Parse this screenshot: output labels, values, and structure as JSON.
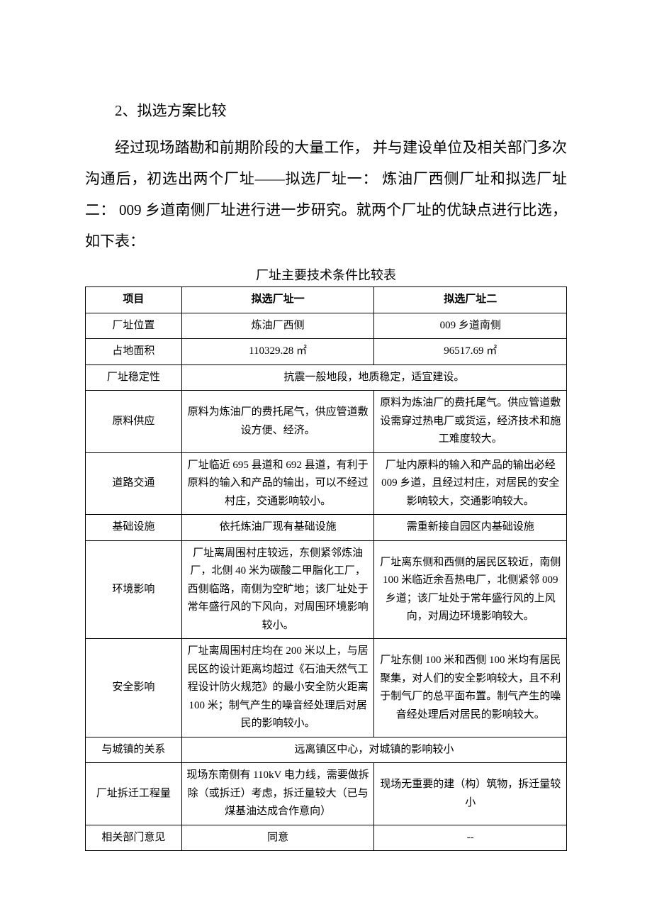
{
  "heading": "2、拟选方案比较",
  "paragraph": "经过现场踏勘和前期阶段的大量工作，  并与建设单位及相关部门多次沟通后，初选出两个厂址——拟选厂址一：  炼油厂西侧厂址和拟选厂址二： 009 乡道南侧厂址进行进一步研究。就两个厂址的优缺点进行比选，如下表：",
  "table": {
    "title": "厂址主要技术条件比较表",
    "header": {
      "col0": "项目",
      "col1": "拟选厂址一",
      "col2": "拟选厂址二"
    },
    "rows": {
      "location": {
        "label": "厂址位置",
        "opt1": "炼油厂西侧",
        "opt2": "009 乡道南侧"
      },
      "area": {
        "label": "占地面积",
        "opt1": "110329.28 ㎡",
        "opt2": "96517.69 ㎡"
      },
      "stability": {
        "label": "厂址稳定性",
        "merged": "抗震一般地段，地质稳定，适宜建设。"
      },
      "material": {
        "label": "原料供应",
        "opt1": "原料为炼油厂的费托尾气，供应管道敷设方便、经济。",
        "opt2": "原料为炼油厂的费托尾气。供应管道敷设需穿过热电厂或货运，经济技术和施工难度较大。"
      },
      "traffic": {
        "label": "道路交通",
        "opt1": "厂址临近 695 县道和 692 县道，有利于原料的输入和产品的输出，可以不经过村庄，交通影响较小。",
        "opt2": "厂址内原料的输入和产品的输出必经 009 乡道，且经过村庄，对居民的安全影响较大，交通影响较大。"
      },
      "infra": {
        "label": "基础设施",
        "opt1": "依托炼油厂现有基础设施",
        "opt2": "需重新接自园区内基础设施"
      },
      "env": {
        "label": "环境影响",
        "opt1": "厂址离周围村庄较远，东侧紧邻炼油厂，北侧 40 米为碳酸二甲脂化工厂，西侧临路，南侧为空旷地；该厂址处于常年盛行风的下风向，对周围环境影响较小。",
        "opt2": "厂址离东侧和西侧的居民区较近，南侧 100 米临近余吾热电厂，北侧紧邻 009 乡道；该厂址处于常年盛行风的上风向，对周边环境影响较大。"
      },
      "safety": {
        "label": "安全影响",
        "opt1": "厂址离周围村庄均在 200 米以上，与居民区的设计距离均超过《石油天然气工程设计防火规范》的最小安全防火距离 100 米；制气产生的噪音经处理后对居民的影响较小。",
        "opt2": "厂址东侧 100 米和西侧 100 米均有居民聚集，对人们的安全影响较大，且不利于制气厂的总平面布置。制气产生的噪音经处理后对居民的影响较大。"
      },
      "town": {
        "label": "与城镇的关系",
        "merged": "远离镇区中心，对城镇的影响较小"
      },
      "demolition": {
        "label": "厂址拆迁工程量",
        "opt1": "现场东南侧有 110kV 电力线，需要做拆除（或拆迁）考虑，拆迁量较大（已与煤基油达成合作意向）",
        "opt2": "现场无重要的建（构）筑物，拆迁量较小"
      },
      "opinion": {
        "label": "相关部门意见",
        "opt1": "同意",
        "opt2": "--"
      }
    }
  }
}
